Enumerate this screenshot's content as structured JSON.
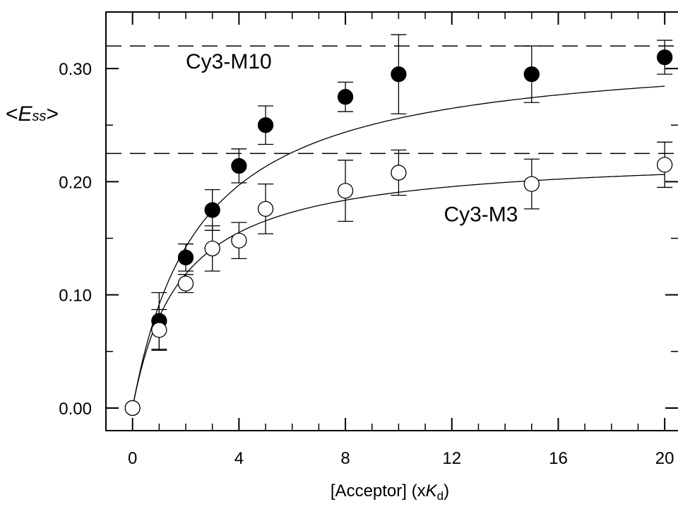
{
  "chart_data": {
    "type": "scatter",
    "xlabel": {
      "main": "[Acceptor]",
      "prefix": "(x",
      "var": "K",
      "sub": "d",
      "suffix": ")"
    },
    "ylabel": {
      "open": "<",
      "var": "E",
      "sub": "ss",
      "close": ">"
    },
    "xlim": [
      -1,
      20.5
    ],
    "ylim": [
      -0.02,
      0.35
    ],
    "x_ticks": [
      0,
      4,
      8,
      12,
      16,
      20
    ],
    "x_minor_ticks": [
      1,
      2,
      3,
      5,
      6,
      7,
      9,
      10,
      11,
      13,
      14,
      15,
      17,
      18,
      19
    ],
    "y_ticks": [
      0.0,
      0.1,
      0.2,
      0.3
    ],
    "y_tick_labels": [
      "0.00",
      "0.10",
      "0.20",
      "0.30"
    ],
    "y_minor_ticks": [
      0.05,
      0.15,
      0.25
    ],
    "grid": false,
    "legend": "none",
    "series": [
      {
        "name": "Cy3-M10",
        "marker": "filled-circle",
        "x": [
          1,
          2,
          3,
          4,
          5,
          8,
          10,
          15,
          20
        ],
        "y": [
          0.077,
          0.133,
          0.175,
          0.214,
          0.25,
          0.275,
          0.295,
          0.295,
          0.31
        ],
        "err": [
          0.025,
          0.012,
          0.018,
          0.015,
          0.017,
          0.013,
          0.035,
          0.025,
          0.015
        ],
        "fit": {
          "origin": 0,
          "plateau": 0.32,
          "half": 2.5
        },
        "asymptote": 0.32
      },
      {
        "name": "Cy3-M3",
        "marker": "open-circle",
        "x": [
          0,
          1,
          2,
          3,
          4,
          5,
          8,
          10,
          15,
          20
        ],
        "y": [
          0.0,
          0.069,
          0.11,
          0.141,
          0.148,
          0.176,
          0.192,
          0.208,
          0.198,
          0.215
        ],
        "err": [
          0,
          0.018,
          0.008,
          0.02,
          0.016,
          0.022,
          0.027,
          0.02,
          0.022,
          0.02
        ],
        "fit": {
          "origin": 0,
          "plateau": 0.225,
          "half": 1.8
        },
        "asymptote": 0.225
      }
    ],
    "annotations": [
      {
        "text": "Cy3-M10",
        "x": 2.0,
        "y": 0.3
      },
      {
        "text": "Cy3-M3",
        "x": 11.7,
        "y": 0.165
      }
    ]
  }
}
